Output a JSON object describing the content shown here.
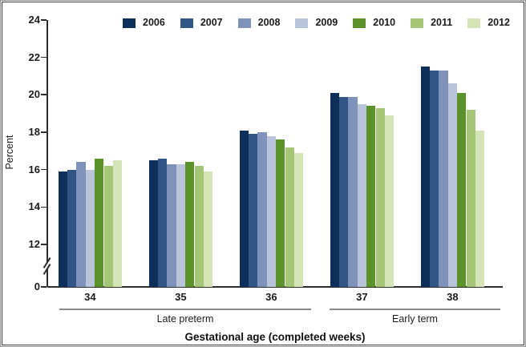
{
  "chart_data": {
    "type": "bar",
    "title": "",
    "ylabel": "Percent",
    "xlabel": "Gestational age (completed weeks)",
    "categories": [
      "34",
      "35",
      "36",
      "37",
      "38"
    ],
    "category_groups": [
      {
        "label": "Late preterm",
        "categories": [
          "34",
          "35",
          "36"
        ]
      },
      {
        "label": "Early term",
        "categories": [
          "37",
          "38"
        ]
      }
    ],
    "series": [
      {
        "name": "2006",
        "color": "#0f2f5b",
        "values": [
          15.9,
          16.5,
          18.1,
          20.1,
          21.5
        ]
      },
      {
        "name": "2007",
        "color": "#315685",
        "values": [
          16.0,
          16.6,
          17.9,
          19.9,
          21.3
        ]
      },
      {
        "name": "2008",
        "color": "#7f93ba",
        "values": [
          16.4,
          16.3,
          18.0,
          19.9,
          21.3
        ]
      },
      {
        "name": "2009",
        "color": "#b9c3d9",
        "values": [
          16.0,
          16.3,
          17.8,
          19.5,
          20.6
        ]
      },
      {
        "name": "2010",
        "color": "#5b9229",
        "values": [
          16.6,
          16.4,
          17.6,
          19.4,
          20.1
        ]
      },
      {
        "name": "2011",
        "color": "#a6c677",
        "values": [
          16.2,
          16.2,
          17.2,
          19.3,
          19.2
        ]
      },
      {
        "name": "2012",
        "color": "#d5e4b6",
        "values": [
          16.5,
          15.9,
          16.9,
          18.9,
          18.1
        ]
      }
    ],
    "yticks": [
      24,
      22,
      20,
      18,
      16,
      14,
      12,
      0
    ],
    "ylim": [
      0,
      24
    ],
    "axis_break_between": [
      0,
      12
    ],
    "legend_position": "top",
    "grid": false
  }
}
